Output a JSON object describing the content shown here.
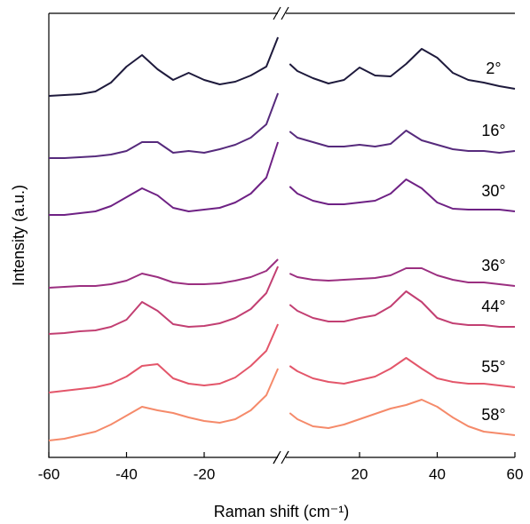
{
  "chart_data": {
    "type": "line",
    "xlabel": "Raman shift (cm⁻¹)",
    "ylabel": "Intensity (a.u.)",
    "x": [
      -60,
      -56,
      -52,
      -48,
      -44,
      -40,
      -36,
      -32,
      -28,
      -24,
      -20,
      -16,
      -12,
      -8,
      -4,
      -1,
      0,
      2,
      4,
      8,
      12,
      16,
      20,
      24,
      28,
      32,
      36,
      40,
      44,
      48,
      52,
      56,
      60
    ],
    "xlim": [
      -60,
      60
    ],
    "xticks": [
      -60,
      -40,
      -20,
      20,
      40,
      60
    ],
    "ylim": [
      0,
      100
    ],
    "series": [
      {
        "name": "2°",
        "color": "#1e1a3c",
        "values": [
          81.4,
          81.6,
          81.8,
          82.4,
          84.4,
          88,
          90.6,
          87.4,
          85,
          86.6,
          85,
          84,
          84.6,
          86,
          88,
          94.6,
          null,
          88.6,
          87,
          85.4,
          84.2,
          85,
          87.8,
          86,
          85.8,
          88.6,
          92,
          90,
          86.6,
          85,
          84.4,
          83.6,
          83
        ]
      },
      {
        "name": "16°",
        "color": "#562a7c",
        "values": [
          67.4,
          67.4,
          67.6,
          67.8,
          68.2,
          69,
          71,
          71,
          68.6,
          69,
          68.6,
          69.4,
          70.4,
          72,
          75,
          82,
          null,
          73.4,
          72,
          71,
          70,
          70,
          70.4,
          70,
          70.6,
          73.6,
          71.4,
          70.4,
          69.4,
          69,
          69,
          68.6,
          69
        ]
      },
      {
        "name": "30°",
        "color": "#6e2184",
        "values": [
          54.6,
          54.6,
          55,
          55.4,
          56.6,
          58.6,
          60.6,
          59,
          56.2,
          55.4,
          55.8,
          56.2,
          57.4,
          59.4,
          63,
          71,
          null,
          61,
          59.4,
          57.8,
          57,
          57,
          57.4,
          57.8,
          59.4,
          62.6,
          60.6,
          57.4,
          56,
          55.8,
          55.8,
          55.8,
          55.4
        ]
      },
      {
        "name": "36°",
        "color": "#9b2f80",
        "values": [
          38.2,
          38.4,
          38.6,
          38.6,
          39,
          39.8,
          41.4,
          40.6,
          39.4,
          39,
          39,
          39.2,
          39.8,
          40.6,
          42,
          44.6,
          null,
          41.4,
          40.6,
          40,
          39.8,
          40,
          40.2,
          40.4,
          41,
          42.6,
          42.6,
          41,
          40,
          39.4,
          39.4,
          39,
          38.6
        ]
      },
      {
        "name": "44°",
        "color": "#c23f72",
        "values": [
          27.8,
          28,
          28.4,
          28.6,
          29.4,
          31,
          35,
          33,
          30,
          29.4,
          29.6,
          30.2,
          31.4,
          33.4,
          37,
          43,
          null,
          34.4,
          33,
          31.4,
          30.6,
          30.6,
          31.4,
          32,
          34,
          37.4,
          35,
          31.4,
          30.2,
          29.8,
          29.8,
          29.4,
          29.4
        ]
      },
      {
        "name": "55°",
        "color": "#e3566a",
        "values": [
          14.6,
          15,
          15.4,
          15.8,
          16.6,
          18.2,
          20.6,
          21,
          17.8,
          16.6,
          16.2,
          16.6,
          18,
          20.6,
          24,
          30,
          null,
          20.6,
          19.4,
          17.8,
          17,
          16.6,
          17.4,
          18.2,
          20,
          22.4,
          20,
          17.8,
          17,
          16.6,
          16.6,
          16.2,
          15.8
        ]
      },
      {
        "name": "58°",
        "color": "#f58a6a",
        "values": [
          3.8,
          4.2,
          5,
          5.8,
          7.4,
          9.4,
          11.4,
          10.6,
          10,
          9,
          8.2,
          7.8,
          8.6,
          10.6,
          14,
          20,
          null,
          10,
          8.6,
          7,
          6.6,
          7.4,
          8.6,
          9.8,
          11,
          11.8,
          13,
          11.4,
          9,
          7,
          5.8,
          5.4,
          5
        ]
      }
    ]
  }
}
